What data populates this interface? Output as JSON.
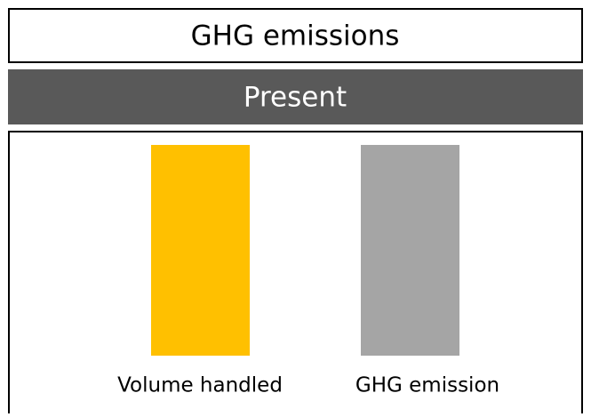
{
  "header": {
    "title": "GHG emissions",
    "subtitle": "Present"
  },
  "items": [
    {
      "label": "Volume handled",
      "color": "#ffc000"
    },
    {
      "label": "GHG emission",
      "color": "#a5a5a5"
    }
  ]
}
